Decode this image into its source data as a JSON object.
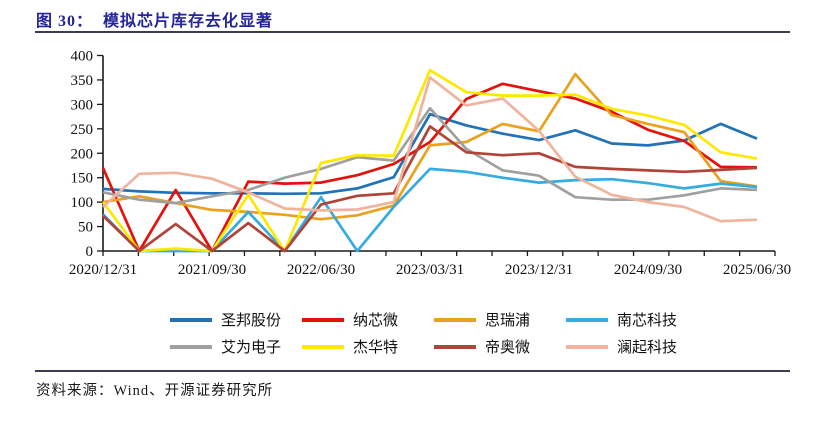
{
  "header": {
    "figure_label": "图 30：",
    "title": "模拟芯片库存去化显著"
  },
  "source": {
    "label": "资料来源：Wind、开源证券研究所"
  },
  "colors": {
    "title": "#24249B",
    "axis": "#1a1a1a",
    "rule": "#3d3d52"
  },
  "chart_data": {
    "type": "line",
    "title": "模拟芯片库存去化显著",
    "xlabel": "",
    "ylabel": "",
    "ylim": [
      0,
      400
    ],
    "ytick_step": 50,
    "grid": false,
    "legend_position": "bottom",
    "x": [
      "2020/12/31",
      "2021/03/31",
      "2021/06/30",
      "2021/09/30",
      "2021/12/31",
      "2022/03/31",
      "2022/06/30",
      "2022/09/30",
      "2022/12/31",
      "2023/03/31",
      "2023/06/30",
      "2023/09/30",
      "2023/12/31",
      "2024/03/31",
      "2024/06/30",
      "2024/09/30",
      "2024/12/31",
      "2025/03/31",
      "2025/06/30"
    ],
    "visible_x_tick_labels": [
      "2020/12/31",
      "2021/09/30",
      "2022/06/30",
      "2023/03/31",
      "2023/12/31",
      "2024/09/30",
      "2025/06/30"
    ],
    "series": [
      {
        "name": "圣邦股份",
        "color": "#2272B8",
        "values": [
          127,
          122,
          119,
          118,
          118,
          117,
          118,
          128,
          151,
          280,
          257,
          240,
          227,
          247,
          220,
          216,
          226,
          260,
          230
        ]
      },
      {
        "name": "纳芯微",
        "color": "#E3120B",
        "values": [
          170,
          0,
          125,
          0,
          142,
          138,
          140,
          155,
          178,
          223,
          311,
          342,
          327,
          312,
          285,
          248,
          225,
          172,
          171
        ]
      },
      {
        "name": "思瑞浦",
        "color": "#EAA11E",
        "values": [
          100,
          112,
          98,
          84,
          80,
          74,
          65,
          73,
          93,
          216,
          223,
          260,
          245,
          362,
          278,
          260,
          243,
          143,
          132
        ]
      },
      {
        "name": "南芯科技",
        "color": "#35ABE0",
        "values": [
          75,
          0,
          0,
          0,
          80,
          0,
          110,
          0,
          90,
          168,
          162,
          150,
          140,
          145,
          147,
          139,
          128,
          138,
          131
        ]
      },
      {
        "name": "艾为电子",
        "color": "#A0A0A0",
        "values": [
          120,
          105,
          98,
          112,
          125,
          150,
          168,
          192,
          185,
          292,
          209,
          165,
          154,
          110,
          105,
          105,
          114,
          128,
          125
        ]
      },
      {
        "name": "杰华特",
        "color": "#FFE800",
        "values": [
          100,
          0,
          5,
          0,
          115,
          0,
          180,
          196,
          195,
          370,
          325,
          318,
          318,
          320,
          291,
          277,
          258,
          202,
          189
        ]
      },
      {
        "name": "帝奥微",
        "color": "#B04438",
        "values": [
          72,
          0,
          55,
          0,
          57,
          0,
          95,
          113,
          118,
          255,
          202,
          196,
          200,
          172,
          168,
          165,
          162,
          166,
          170
        ]
      },
      {
        "name": "澜起科技",
        "color": "#F0B49E",
        "values": [
          90,
          158,
          160,
          148,
          120,
          87,
          83,
          85,
          100,
          355,
          298,
          312,
          246,
          152,
          115,
          100,
          90,
          61,
          64
        ]
      }
    ]
  }
}
